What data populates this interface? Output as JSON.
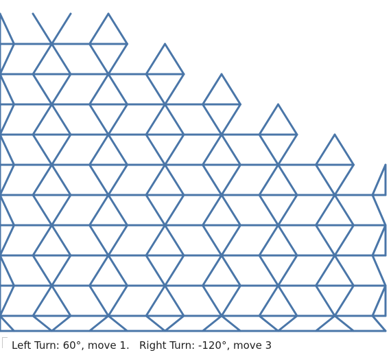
{
  "caption": {
    "text": "Left Turn: 60°, move 1.   Right Turn: -120°, move 3"
  },
  "pattern": {
    "left_turn_degrees": 60,
    "left_move": 1,
    "right_turn_degrees": -120,
    "right_move": 3,
    "stroke_color": "#4a76a8"
  }
}
